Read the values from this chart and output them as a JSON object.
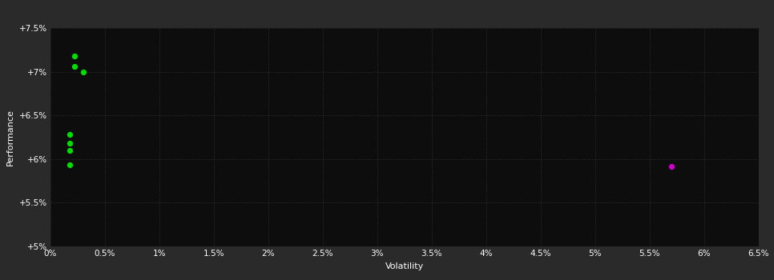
{
  "background_color": "#2a2a2a",
  "plot_bg_color": "#0d0d0d",
  "grid_color": "#3a3a3a",
  "text_color": "#ffffff",
  "xlabel": "Volatility",
  "ylabel": "Performance",
  "xlim": [
    0,
    0.065
  ],
  "ylim": [
    0.05,
    0.075
  ],
  "xticks": [
    0.0,
    0.005,
    0.01,
    0.015,
    0.02,
    0.025,
    0.03,
    0.035,
    0.04,
    0.045,
    0.05,
    0.055,
    0.06,
    0.065
  ],
  "xtick_labels": [
    "0%",
    "0.5%",
    "1%",
    "1.5%",
    "2%",
    "2.5%",
    "3%",
    "3.5%",
    "4%",
    "4.5%",
    "5%",
    "5.5%",
    "6%",
    "6.5%"
  ],
  "yticks": [
    0.05,
    0.055,
    0.06,
    0.065,
    0.07,
    0.075
  ],
  "ytick_labels": [
    "+5%",
    "+5.5%",
    "+6%",
    "+6.5%",
    "+7%",
    "+7.5%"
  ],
  "green_points": [
    [
      0.0022,
      0.0718
    ],
    [
      0.0022,
      0.0706
    ],
    [
      0.003,
      0.07
    ],
    [
      0.0018,
      0.0628
    ],
    [
      0.0018,
      0.0618
    ],
    [
      0.0018,
      0.061
    ],
    [
      0.0018,
      0.0593
    ]
  ],
  "magenta_points": [
    [
      0.057,
      0.0592
    ]
  ],
  "green_color": "#00dd00",
  "magenta_color": "#cc00cc",
  "marker_size": 18
}
